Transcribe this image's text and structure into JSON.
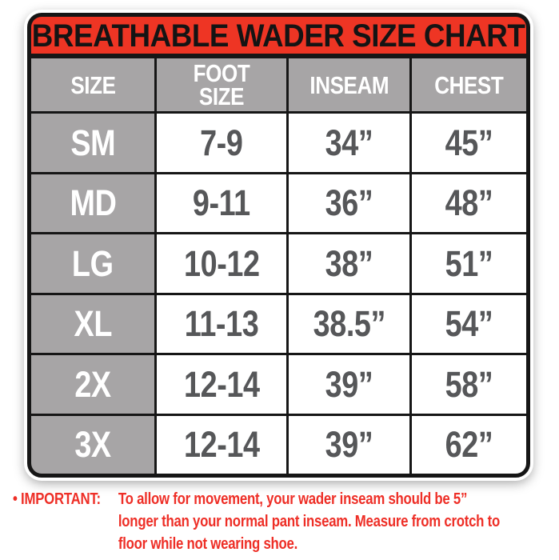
{
  "banner": {
    "title": "BREATHABLE WADER SIZE CHART"
  },
  "table": {
    "headers": {
      "size": "SIZE",
      "foot_size": "FOOT SIZE",
      "inseam": "INSEAM",
      "chest": "CHEST"
    },
    "rows": [
      {
        "size": "SM",
        "foot_size": "7-9",
        "inseam": "34”",
        "chest": "45”"
      },
      {
        "size": "MD",
        "foot_size": "9-11",
        "inseam": "36”",
        "chest": "48”"
      },
      {
        "size": "LG",
        "foot_size": "10-12",
        "inseam": "38”",
        "chest": "51”"
      },
      {
        "size": "XL",
        "foot_size": "11-13",
        "inseam": "38.5”",
        "chest": "54”"
      },
      {
        "size": "2X",
        "foot_size": "12-14",
        "inseam": "39”",
        "chest": "58”"
      },
      {
        "size": "3X",
        "foot_size": "12-14",
        "inseam": "39”",
        "chest": "62”"
      }
    ]
  },
  "footnote": {
    "label": "• IMPORTANT:",
    "line1": "To allow for movement, your wader inseam should be 5”",
    "line2": "longer than your normal pant inseam. Measure from crotch to",
    "line3": "floor while not wearing shoe."
  },
  "colors": {
    "banner_red": "#ee3524",
    "footnote_red": "#ee2f27",
    "header_gray": "#a7a5a6",
    "data_text_gray": "#565759",
    "border_black": "#161616"
  },
  "chart_data": {
    "type": "table",
    "title": "BREATHABLE WADER SIZE CHART",
    "columns": [
      "SIZE",
      "FOOT SIZE",
      "INSEAM",
      "CHEST"
    ],
    "rows": [
      [
        "SM",
        "7-9",
        "34”",
        "45”"
      ],
      [
        "MD",
        "9-11",
        "36”",
        "48”"
      ],
      [
        "LG",
        "10-12",
        "38”",
        "51”"
      ],
      [
        "XL",
        "11-13",
        "38.5”",
        "54”"
      ],
      [
        "2X",
        "12-14",
        "39”",
        "58”"
      ],
      [
        "3X",
        "12-14",
        "39”",
        "62”"
      ]
    ],
    "annotations": [
      "IMPORTANT: To allow for movement, your wader inseam should be 5” longer than your normal pant inseam. Measure from crotch to floor while not wearing shoe."
    ]
  }
}
